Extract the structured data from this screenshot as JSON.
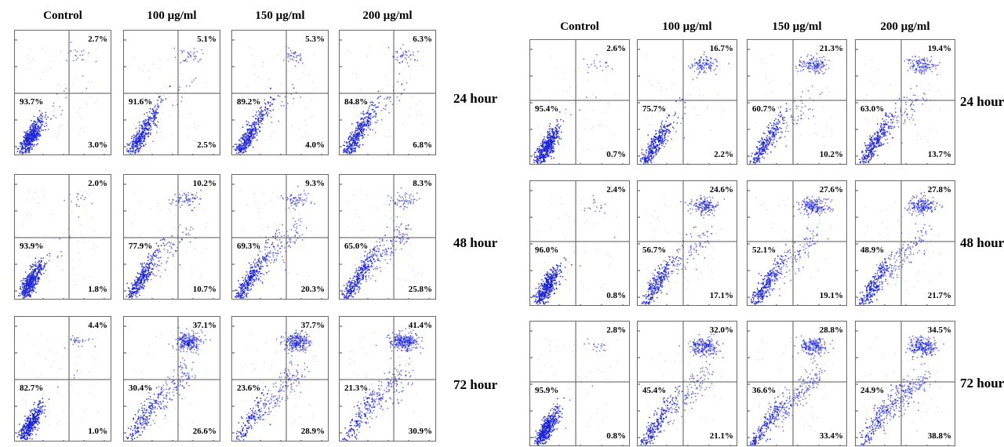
{
  "chart_data": [
    {
      "type": "scatter",
      "title": "",
      "columns": [
        "Control",
        "100 µg/ml",
        "150 µg/ml",
        "200 µg/ml"
      ],
      "rows": [
        "24 hour",
        "48 hour",
        "72 hour"
      ],
      "quadrant_labels": [
        [
          {
            "ul": "93.7%",
            "ur": "2.7%",
            "lr": "3.0%"
          },
          {
            "ul": "91.6%",
            "ur": "5.1%",
            "lr": "2.5%"
          },
          {
            "ul": "89.2%",
            "ur": "5.3%",
            "lr": "4.0%"
          },
          {
            "ul": "84.8%",
            "ur": "6.3%",
            "lr": "6.8%"
          }
        ],
        [
          {
            "ul": "93.9%",
            "ur": "2.0%",
            "lr": "1.8%"
          },
          {
            "ul": "77.9%",
            "ur": "10.2%",
            "lr": "10.7%"
          },
          {
            "ul": "69.3%",
            "ur": "9.3%",
            "lr": "20.3%"
          },
          {
            "ul": "65.0%",
            "ur": "8.3%",
            "lr": "25.8%"
          }
        ],
        [
          {
            "ul": "82.7%",
            "ur": "4.4%",
            "lr": "1.0%"
          },
          {
            "ul": "30.4%",
            "ur": "37.1%",
            "lr": "26.6%"
          },
          {
            "ul": "23.6%",
            "ur": "37.7%",
            "lr": "28.9%"
          },
          {
            "ul": "21.3%",
            "ur": "41.4%",
            "lr": "30.9%"
          }
        ]
      ]
    },
    {
      "type": "scatter",
      "title": "",
      "columns": [
        "Control",
        "100 µg/ml",
        "150 µg/ml",
        "200 µg/ml"
      ],
      "rows": [
        "24 hour",
        "48 hour",
        "72 hour"
      ],
      "quadrant_labels": [
        [
          {
            "ul": "95.4%",
            "ur": "2.6%",
            "lr": "0.7%"
          },
          {
            "ul": "75.7%",
            "ur": "16.7%",
            "lr": "2.2%"
          },
          {
            "ul": "60.7%",
            "ur": "21.3%",
            "lr": "10.2%"
          },
          {
            "ul": "63.0%",
            "ur": "19.4%",
            "lr": "13.7%"
          }
        ],
        [
          {
            "ul": "96.0%",
            "ur": "2.4%",
            "lr": "0.8%"
          },
          {
            "ul": "56.7%",
            "ur": "24.6%",
            "lr": "17.1%"
          },
          {
            "ul": "52.1%",
            "ur": "27.6%",
            "lr": "19.1%"
          },
          {
            "ul": "48.9%",
            "ur": "27.8%",
            "lr": "21.7%"
          }
        ],
        [
          {
            "ul": "95.9%",
            "ur": "2.8%",
            "lr": "0.8%"
          },
          {
            "ul": "45.4%",
            "ur": "32.0%",
            "lr": "21.1%"
          },
          {
            "ul": "36.6%",
            "ur": "28.8%",
            "lr": "33.4%"
          },
          {
            "ul": "24.9%",
            "ur": "34.5%",
            "lr": "38.8%"
          }
        ]
      ]
    }
  ],
  "colors": {
    "dots": "#1a22d6",
    "dots_light": "#5a62e6",
    "quadrant_line": "#555555",
    "border": "#6a6a6a"
  }
}
